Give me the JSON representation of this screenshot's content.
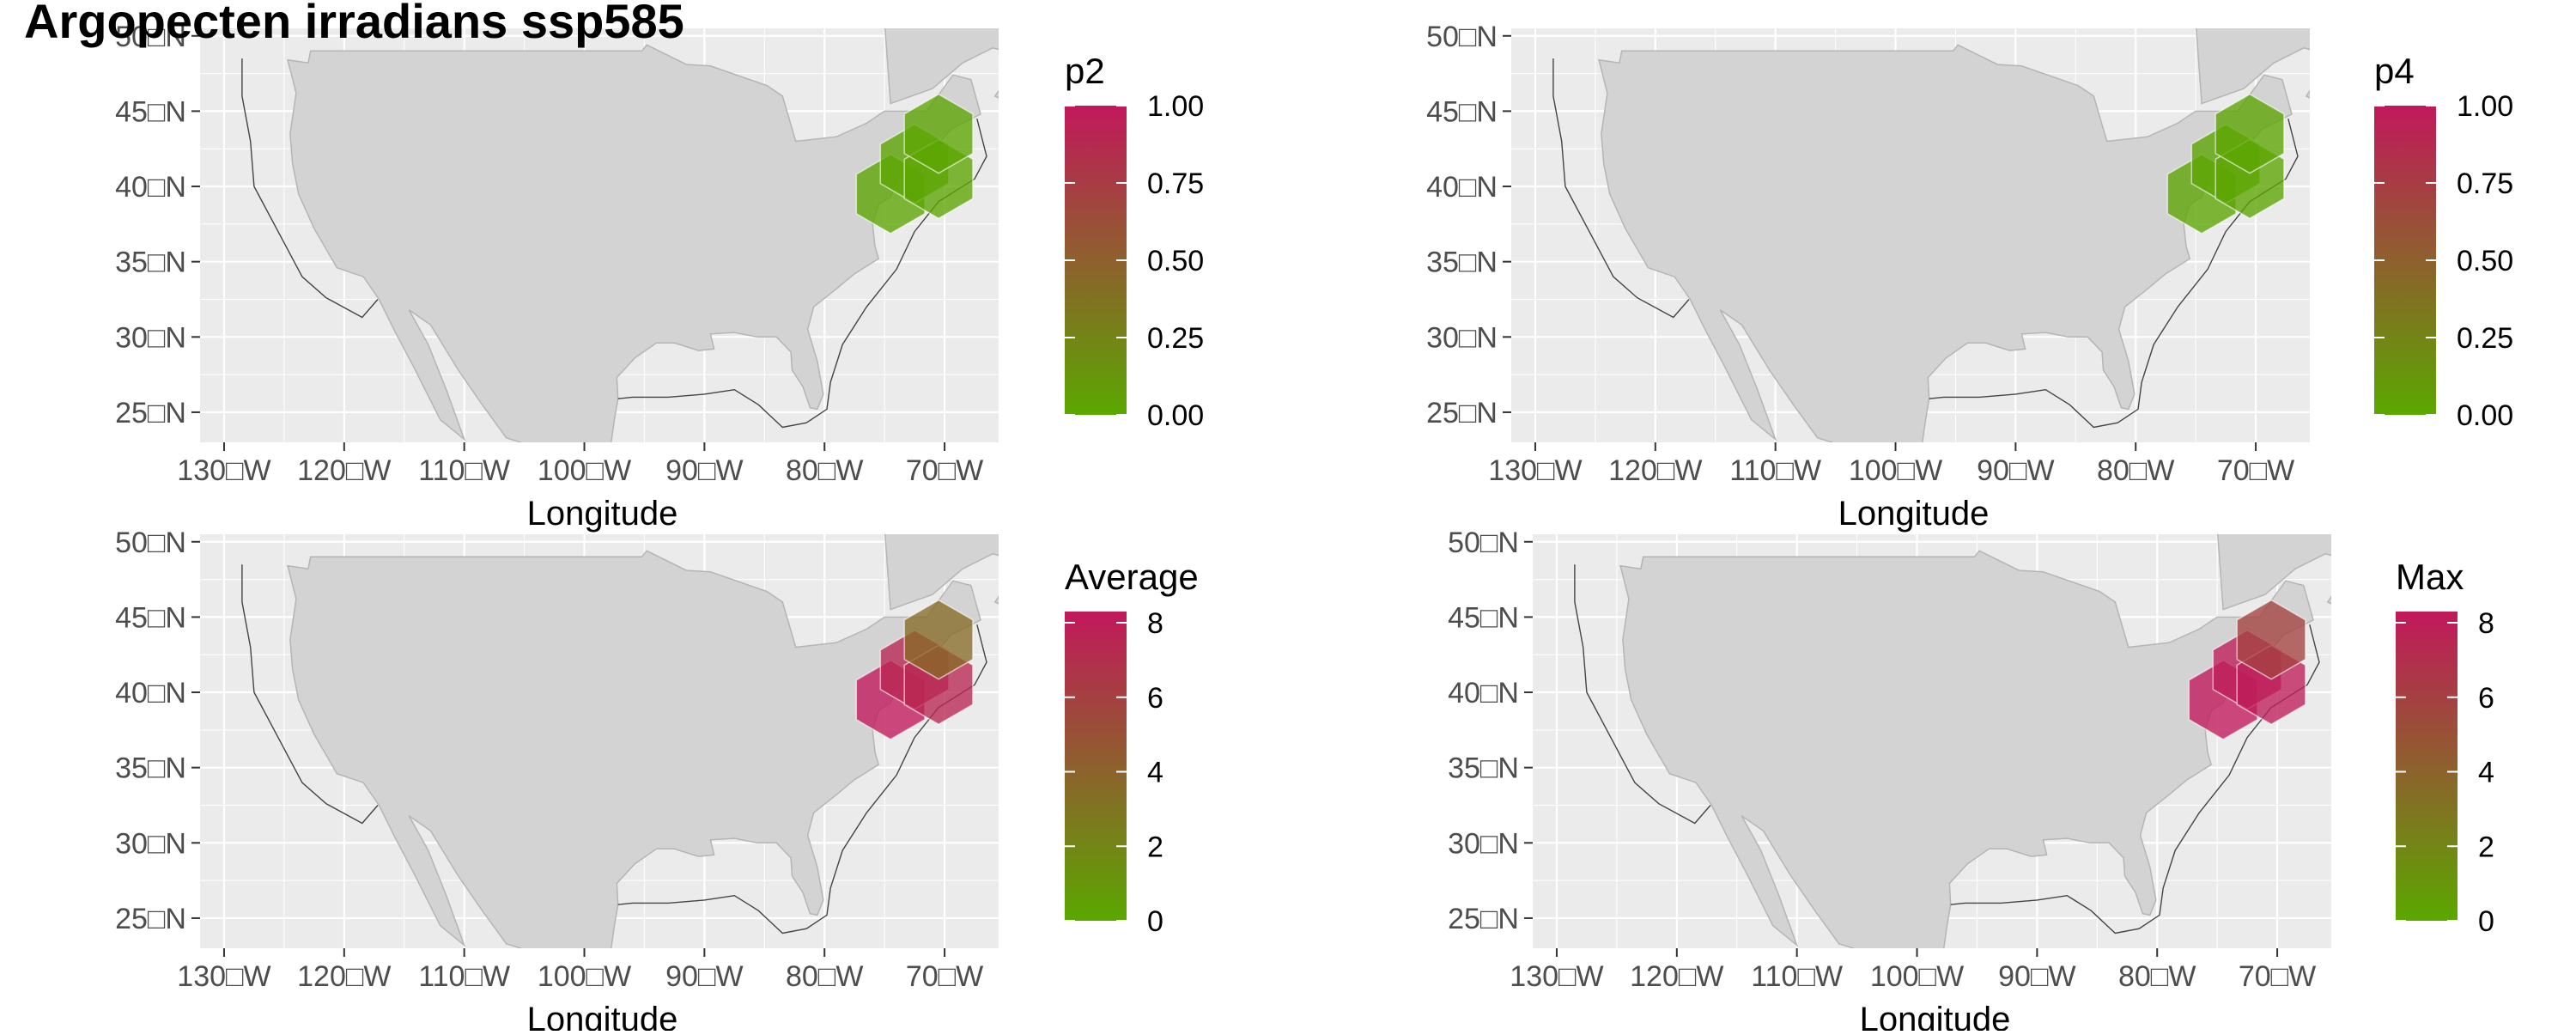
{
  "title": "Argopecten irradians ssp585",
  "colors": {
    "panel_bg": "#EBEBEB",
    "grid": "#FFFFFF",
    "land": "#D3D3D3",
    "land_outline": "#B5B5B5",
    "eez_outline": "#444444",
    "scale_low": "#5AA800",
    "scale_high": "#C2185B",
    "axis_text": "#4D4D4D"
  },
  "chart_data": [
    {
      "type": "map",
      "subtitle": "",
      "xlabel": "Longitude",
      "ylabel": "",
      "xlim": [
        -132,
        -65.5
      ],
      "ylim": [
        23,
        50.5
      ],
      "xticks": [
        -130,
        -120,
        -110,
        -100,
        -90,
        -80,
        -70
      ],
      "xtick_labels": [
        "130□W",
        "120□W",
        "110□W",
        "100□W",
        "90□W",
        "80□W",
        "70□W"
      ],
      "yticks": [
        25,
        30,
        35,
        40,
        45,
        50
      ],
      "ytick_labels": [
        "25□N",
        "30□N",
        "35□N",
        "40□N",
        "45□N",
        "50□N"
      ],
      "legend": {
        "title": "p2",
        "range": [
          0,
          1
        ],
        "breaks": [
          "0.00",
          "0.25",
          "0.50",
          "0.75",
          "1.00"
        ],
        "placement": "right"
      },
      "cells": [
        {
          "lon": -74.5,
          "lat": 39.5,
          "value": 0.02
        },
        {
          "lon": -72.5,
          "lat": 41.5,
          "value": 0.02
        },
        {
          "lon": -70.5,
          "lat": 40.5,
          "value": 0.02
        },
        {
          "lon": -70.5,
          "lat": 43.5,
          "value": 0.02
        }
      ]
    },
    {
      "type": "map",
      "subtitle": "",
      "xlabel": "Longitude",
      "ylabel": "",
      "xlim": [
        -132,
        -65.5
      ],
      "ylim": [
        23,
        50.5
      ],
      "xticks": [
        -130,
        -120,
        -110,
        -100,
        -90,
        -80,
        -70
      ],
      "xtick_labels": [
        "130□W",
        "120□W",
        "110□W",
        "100□W",
        "90□W",
        "80□W",
        "70□W"
      ],
      "yticks": [
        25,
        30,
        35,
        40,
        45,
        50
      ],
      "ytick_labels": [
        "25□N",
        "30□N",
        "35□N",
        "40□N",
        "45□N",
        "50□N"
      ],
      "legend": {
        "title": "p4",
        "range": [
          0,
          1
        ],
        "breaks": [
          "0.00",
          "0.25",
          "0.50",
          "0.75",
          "1.00"
        ],
        "placement": "right"
      },
      "cells": [
        {
          "lon": -74.5,
          "lat": 39.5,
          "value": 0.02
        },
        {
          "lon": -72.5,
          "lat": 41.5,
          "value": 0.02
        },
        {
          "lon": -70.5,
          "lat": 40.5,
          "value": 0.02
        },
        {
          "lon": -70.5,
          "lat": 43.5,
          "value": 0.02
        }
      ]
    },
    {
      "type": "map",
      "subtitle": "",
      "xlabel": "Longitude",
      "ylabel": "",
      "xlim": [
        -132,
        -65.5
      ],
      "ylim": [
        23,
        50.5
      ],
      "xticks": [
        -130,
        -120,
        -110,
        -100,
        -90,
        -80,
        -70
      ],
      "xtick_labels": [
        "130□W",
        "120□W",
        "110□W",
        "100□W",
        "90□W",
        "80□W",
        "70□W"
      ],
      "yticks": [
        25,
        30,
        35,
        40,
        45,
        50
      ],
      "ytick_labels": [
        "25□N",
        "30□N",
        "35□N",
        "40□N",
        "45□N",
        "50□N"
      ],
      "legend": {
        "title": "Average",
        "range": [
          0,
          8.3
        ],
        "breaks": [
          "0",
          "2",
          "4",
          "6",
          "8"
        ],
        "placement": "right"
      },
      "cells": [
        {
          "lon": -74.5,
          "lat": 39.5,
          "value": 8.3
        },
        {
          "lon": -72.5,
          "lat": 41.5,
          "value": 7.5
        },
        {
          "lon": -70.5,
          "lat": 40.5,
          "value": 7.5
        },
        {
          "lon": -70.5,
          "lat": 43.5,
          "value": 3.6
        }
      ]
    },
    {
      "type": "map",
      "subtitle": "",
      "xlabel": "Longitude",
      "ylabel": "",
      "xlim": [
        -132,
        -65.5
      ],
      "ylim": [
        23,
        50.5
      ],
      "xticks": [
        -130,
        -120,
        -110,
        -100,
        -90,
        -80,
        -70
      ],
      "xtick_labels": [
        "130□W",
        "120□W",
        "110□W",
        "100□W",
        "90□W",
        "80□W",
        "70□W"
      ],
      "yticks": [
        25,
        30,
        35,
        40,
        45,
        50
      ],
      "ytick_labels": [
        "25□N",
        "30□N",
        "35□N",
        "40□N",
        "45□N",
        "50□N"
      ],
      "legend": {
        "title": "Max",
        "range": [
          0,
          8.3
        ],
        "breaks": [
          "0",
          "2",
          "4",
          "6",
          "8"
        ],
        "placement": "right"
      },
      "cells": [
        {
          "lon": -74.5,
          "lat": 39.5,
          "value": 8.3
        },
        {
          "lon": -72.5,
          "lat": 41.5,
          "value": 8.0
        },
        {
          "lon": -70.5,
          "lat": 40.5,
          "value": 8.0
        },
        {
          "lon": -70.5,
          "lat": 43.5,
          "value": 5.8
        }
      ]
    }
  ]
}
